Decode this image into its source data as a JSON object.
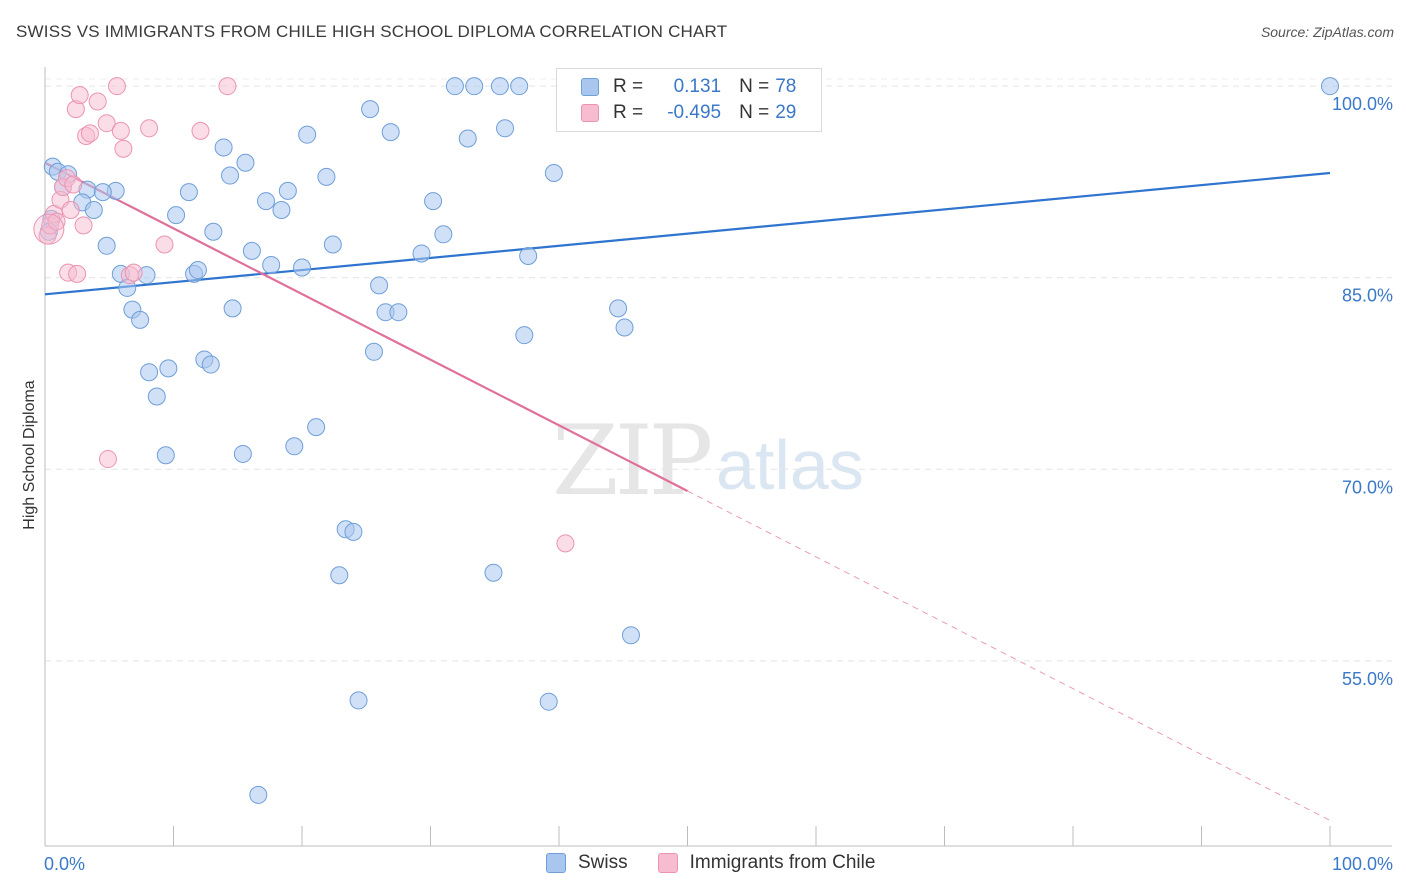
{
  "title": "SWISS VS IMMIGRANTS FROM CHILE HIGH SCHOOL DIPLOMA CORRELATION CHART",
  "source": "Source: ZipAtlas.com",
  "watermark": {
    "zip": "ZIP",
    "atlas": "atlas"
  },
  "legend": {
    "swiss": {
      "r_label": "R =",
      "r_value": "0.131",
      "n_label": "N =",
      "n_value": "78"
    },
    "chile": {
      "r_label": "R =",
      "r_value": "-0.495",
      "n_label": "N =",
      "n_value": "29"
    }
  },
  "bottom_legend": {
    "swiss": "Swiss",
    "chile": "Immigrants from Chile"
  },
  "colors": {
    "swiss_fill": "#a9c7ee",
    "swiss_stroke": "#6f9fd8",
    "swiss_line": "#2f74cf",
    "chile_fill": "#f7bcd0",
    "chile_stroke": "#eb94b2",
    "chile_line": "#e0709a",
    "tick_blue": "#3a78c8"
  },
  "chart_data": {
    "type": "scatter",
    "title": "SWISS VS IMMIGRANTS FROM CHILE HIGH SCHOOL DIPLOMA CORRELATION CHART",
    "ylabel": "High School Diploma",
    "xlabel": "",
    "xlim": [
      0,
      100
    ],
    "ylim": [
      40.5,
      101.5
    ],
    "x_ticks": [
      "0.0%",
      "100.0%"
    ],
    "y_ticks": [
      {
        "value": 55,
        "label": "55.0%"
      },
      {
        "value": 70,
        "label": "70.0%"
      },
      {
        "value": 85,
        "label": "85.0%"
      },
      {
        "value": 100,
        "label": "100.0%"
      }
    ],
    "grid": true,
    "series": [
      {
        "name": "Swiss",
        "points": [
          [
            0.6,
            93.7
          ],
          [
            1.0,
            93.3
          ],
          [
            1.8,
            93.1
          ],
          [
            1.4,
            92.1
          ],
          [
            3.3,
            91.9
          ],
          [
            5.5,
            91.8
          ],
          [
            4.5,
            91.7
          ],
          [
            2.9,
            90.9
          ],
          [
            3.8,
            90.3
          ],
          [
            0.5,
            89.6
          ],
          [
            0.3,
            88.6
          ],
          [
            4.8,
            87.5
          ],
          [
            5.9,
            85.3
          ],
          [
            7.9,
            85.2
          ],
          [
            6.4,
            84.2
          ],
          [
            6.8,
            82.5
          ],
          [
            7.4,
            81.7
          ],
          [
            8.1,
            77.6
          ],
          [
            8.7,
            75.7
          ],
          [
            9.6,
            77.9
          ],
          [
            9.4,
            71.1
          ],
          [
            11.2,
            91.7
          ],
          [
            10.2,
            89.9
          ],
          [
            11.6,
            85.3
          ],
          [
            11.9,
            85.6
          ],
          [
            12.4,
            78.6
          ],
          [
            12.9,
            78.2
          ],
          [
            13.1,
            88.6
          ],
          [
            13.9,
            95.2
          ],
          [
            14.4,
            93.0
          ],
          [
            14.6,
            82.6
          ],
          [
            15.6,
            94.0
          ],
          [
            16.1,
            87.1
          ],
          [
            15.4,
            71.2
          ],
          [
            16.6,
            44.5
          ],
          [
            17.2,
            91.0
          ],
          [
            17.6,
            86.0
          ],
          [
            18.4,
            90.3
          ],
          [
            18.9,
            91.8
          ],
          [
            19.4,
            71.8
          ],
          [
            20.0,
            85.8
          ],
          [
            20.4,
            96.2
          ],
          [
            21.1,
            73.3
          ],
          [
            21.9,
            92.9
          ],
          [
            22.4,
            87.6
          ],
          [
            22.9,
            61.7
          ],
          [
            23.4,
            65.3
          ],
          [
            24.0,
            65.1
          ],
          [
            24.4,
            51.9
          ],
          [
            25.3,
            98.2
          ],
          [
            25.6,
            79.2
          ],
          [
            26.0,
            84.4
          ],
          [
            26.5,
            82.3
          ],
          [
            26.9,
            96.4
          ],
          [
            27.5,
            82.3
          ],
          [
            29.3,
            86.9
          ],
          [
            30.2,
            91.0
          ],
          [
            31.0,
            88.4
          ],
          [
            31.9,
            100.0
          ],
          [
            32.9,
            95.9
          ],
          [
            33.4,
            100.0
          ],
          [
            34.9,
            61.9
          ],
          [
            35.4,
            100.0
          ],
          [
            35.8,
            96.7
          ],
          [
            36.9,
            100.0
          ],
          [
            37.3,
            80.5
          ],
          [
            37.6,
            86.7
          ],
          [
            39.2,
            51.8
          ],
          [
            39.6,
            93.2
          ],
          [
            40.6,
            100.0
          ],
          [
            44.1,
            100.0
          ],
          [
            44.6,
            82.6
          ],
          [
            45.1,
            81.1
          ],
          [
            45.6,
            57.0
          ],
          [
            47.1,
            100.0
          ],
          [
            48.8,
            100.0
          ],
          [
            50.5,
            100.0
          ],
          [
            100.0,
            100.0
          ]
        ]
      },
      {
        "name": "Immigrants from Chile",
        "points": [
          [
            0.2,
            88.3
          ],
          [
            0.4,
            89.1
          ],
          [
            0.7,
            90.0
          ],
          [
            0.9,
            89.4
          ],
          [
            1.2,
            91.1
          ],
          [
            1.4,
            92.1
          ],
          [
            1.7,
            92.8
          ],
          [
            2.0,
            90.3
          ],
          [
            2.2,
            92.3
          ],
          [
            2.4,
            98.2
          ],
          [
            2.7,
            99.3
          ],
          [
            3.0,
            89.1
          ],
          [
            3.2,
            96.1
          ],
          [
            3.5,
            96.3
          ],
          [
            4.1,
            98.8
          ],
          [
            4.8,
            97.1
          ],
          [
            5.6,
            100.0
          ],
          [
            5.9,
            96.5
          ],
          [
            6.1,
            95.1
          ],
          [
            6.6,
            85.2
          ],
          [
            8.1,
            96.7
          ],
          [
            9.3,
            87.6
          ],
          [
            12.1,
            96.5
          ],
          [
            14.2,
            100.0
          ],
          [
            4.9,
            70.8
          ],
          [
            1.8,
            85.4
          ],
          [
            2.5,
            85.3
          ],
          [
            6.9,
            85.4
          ],
          [
            40.5,
            64.2
          ]
        ]
      }
    ],
    "trendlines": [
      {
        "series": "Swiss",
        "x0": 0,
        "y0": 83.7,
        "x1": 100,
        "y1": 93.2
      },
      {
        "series": "Immigrants from Chile",
        "x0": 0,
        "y0": 94.0,
        "x1": 50,
        "y1": 68.3,
        "dashed_to_x": 100,
        "dashed_to_y": 42.5
      }
    ]
  }
}
